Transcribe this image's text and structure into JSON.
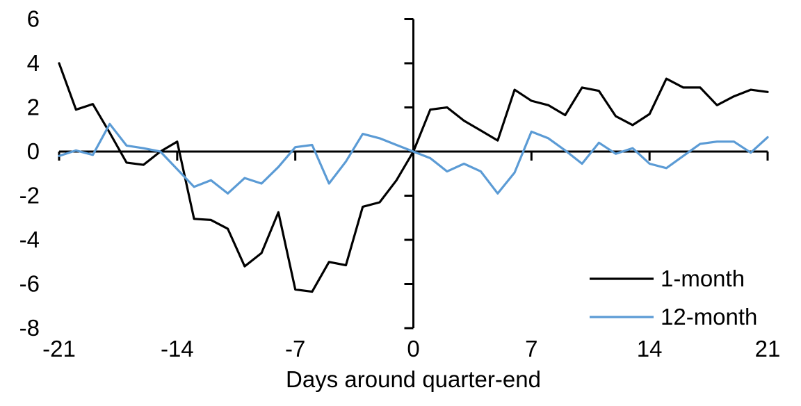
{
  "chart_data": {
    "type": "line",
    "title": "",
    "xlabel": "Days around quarter-end",
    "ylabel": "",
    "xlim": [
      -21,
      21
    ],
    "ylim": [
      -8,
      6
    ],
    "grid": false,
    "legend_position": "inside-bottom-right",
    "x_tick_labels": [
      "-21",
      "-14",
      "-7",
      "0",
      "7",
      "14",
      "21"
    ],
    "x_tick_values": [
      -21,
      -14,
      -7,
      0,
      7,
      14,
      21
    ],
    "y_tick_labels": [
      "6",
      "4",
      "2",
      "0",
      "-2",
      "-4",
      "-6",
      "-8"
    ],
    "y_tick_values": [
      6,
      4,
      2,
      0,
      -2,
      -4,
      -6,
      -8
    ],
    "x": [
      -21,
      -20,
      -19,
      -18,
      -17,
      -16,
      -15,
      -14,
      -13,
      -12,
      -11,
      -10,
      -9,
      -8,
      -7,
      -6,
      -5,
      -4,
      -3,
      -2,
      -1,
      0,
      1,
      2,
      3,
      4,
      5,
      6,
      7,
      8,
      9,
      10,
      11,
      12,
      13,
      14,
      15,
      16,
      17,
      18,
      19,
      20,
      21
    ],
    "series": [
      {
        "name": "1-month",
        "color": "#000000",
        "values": [
          4.0,
          1.9,
          2.15,
          0.85,
          -0.5,
          -0.6,
          0.0,
          0.45,
          -3.05,
          -3.1,
          -3.5,
          -5.2,
          -4.6,
          -2.75,
          -6.25,
          -6.35,
          -5.0,
          -5.15,
          -2.5,
          -2.3,
          -1.3,
          0.0,
          1.9,
          2.0,
          1.4,
          0.95,
          0.5,
          2.8,
          2.3,
          2.1,
          1.65,
          2.9,
          2.75,
          1.6,
          1.2,
          1.7,
          3.3,
          2.9,
          2.9,
          2.1,
          2.5,
          2.8,
          2.7
        ]
      },
      {
        "name": "12-month",
        "color": "#5B9BD5",
        "values": [
          -0.2,
          0.05,
          -0.15,
          1.25,
          0.27,
          0.15,
          0.0,
          -0.8,
          -1.6,
          -1.3,
          -1.9,
          -1.2,
          -1.45,
          -0.7,
          0.2,
          0.3,
          -1.45,
          -0.45,
          0.8,
          0.6,
          0.3,
          0.0,
          -0.3,
          -0.9,
          -0.55,
          -0.9,
          -1.9,
          -0.95,
          0.9,
          0.6,
          0.05,
          -0.55,
          0.4,
          -0.1,
          0.15,
          -0.55,
          -0.75,
          -0.2,
          0.35,
          0.45,
          0.45,
          -0.05,
          0.65
        ]
      }
    ],
    "legend": [
      {
        "label": "1-month",
        "color": "#000000"
      },
      {
        "label": "12-month",
        "color": "#5B9BD5"
      }
    ],
    "axis_color": "#000000"
  }
}
